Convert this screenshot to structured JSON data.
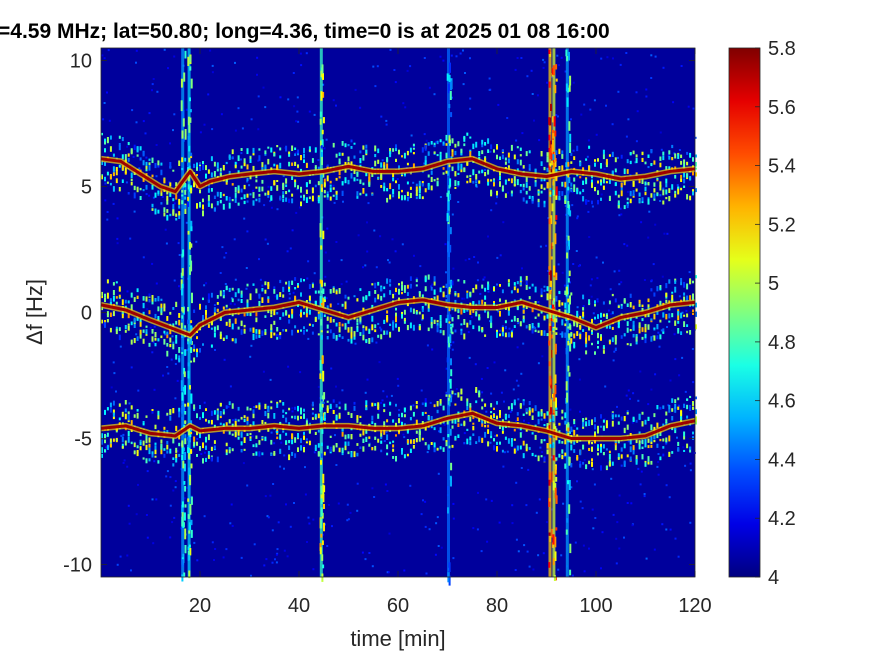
{
  "chart_data": {
    "type": "heatmap",
    "title": "=4.59 MHz;  lat=50.80; long=4.36, time=0 is at 2025 01 08 16:00",
    "xlabel": "time [min]",
    "ylabel": "Δf [Hz]",
    "xlim": [
      0,
      120
    ],
    "ylim": [
      -10.5,
      10.5
    ],
    "x_ticks": [
      20,
      40,
      60,
      80,
      100,
      120
    ],
    "x_tick_labels": [
      "20",
      "40",
      "60",
      "80",
      "100",
      "120"
    ],
    "y_ticks": [
      10,
      5,
      0,
      -5,
      -10
    ],
    "y_tick_labels": [
      "10",
      "5",
      "0",
      "-5",
      "-10"
    ],
    "colorbar": {
      "min": 4,
      "max": 5.8,
      "ticks": [
        5.8,
        5.6,
        5.4,
        5.2,
        5,
        4.8,
        4.6,
        4.4,
        4.2,
        4
      ],
      "tick_labels": [
        "5.8",
        "5.6",
        "5.4",
        "5.2",
        "5",
        "4.8",
        "4.6",
        "4.4",
        "4.2",
        "4"
      ],
      "colormap": "jet",
      "placement": "right"
    },
    "background_level": 4.05,
    "vertical_interference_lines": [
      {
        "time": 16.5,
        "level": 5.0
      },
      {
        "time": 17.8,
        "level": 5.1
      },
      {
        "time": 44.5,
        "level": 5.3
      },
      {
        "time": 70.2,
        "level": 4.9
      },
      {
        "time": 90.7,
        "level": 5.8
      },
      {
        "time": 91.5,
        "level": 5.6
      },
      {
        "time": 94.2,
        "level": 5.0
      }
    ],
    "series": [
      {
        "center_hz": 5.5,
        "points": [
          [
            0,
            6.1
          ],
          [
            4,
            6.0
          ],
          [
            8,
            5.5
          ],
          [
            12,
            5.0
          ],
          [
            15,
            4.8
          ],
          [
            18,
            5.6
          ],
          [
            20,
            5.0
          ],
          [
            22,
            5.2
          ],
          [
            26,
            5.4
          ],
          [
            30,
            5.5
          ],
          [
            35,
            5.6
          ],
          [
            40,
            5.5
          ],
          [
            45,
            5.6
          ],
          [
            50,
            5.8
          ],
          [
            55,
            5.6
          ],
          [
            60,
            5.6
          ],
          [
            65,
            5.7
          ],
          [
            70,
            6.0
          ],
          [
            75,
            6.1
          ],
          [
            80,
            5.7
          ],
          [
            85,
            5.5
          ],
          [
            90,
            5.4
          ],
          [
            95,
            5.6
          ],
          [
            100,
            5.5
          ],
          [
            105,
            5.3
          ],
          [
            110,
            5.4
          ],
          [
            115,
            5.6
          ],
          [
            120,
            5.7
          ]
        ]
      },
      {
        "center_hz": 0,
        "points": [
          [
            0,
            0.3
          ],
          [
            5,
            0.1
          ],
          [
            10,
            -0.3
          ],
          [
            14,
            -0.6
          ],
          [
            18,
            -0.9
          ],
          [
            20,
            -0.5
          ],
          [
            25,
            0.0
          ],
          [
            30,
            0.1
          ],
          [
            35,
            0.2
          ],
          [
            40,
            0.4
          ],
          [
            45,
            0.1
          ],
          [
            50,
            -0.2
          ],
          [
            55,
            0.1
          ],
          [
            60,
            0.4
          ],
          [
            65,
            0.5
          ],
          [
            70,
            0.3
          ],
          [
            75,
            0.2
          ],
          [
            80,
            0.2
          ],
          [
            85,
            0.4
          ],
          [
            90,
            0.1
          ],
          [
            95,
            -0.2
          ],
          [
            100,
            -0.6
          ],
          [
            105,
            -0.2
          ],
          [
            110,
            0.0
          ],
          [
            115,
            0.3
          ],
          [
            120,
            0.4
          ]
        ]
      },
      {
        "center_hz": -4.6,
        "points": [
          [
            0,
            -4.6
          ],
          [
            5,
            -4.5
          ],
          [
            10,
            -4.8
          ],
          [
            15,
            -4.9
          ],
          [
            18,
            -4.5
          ],
          [
            20,
            -4.7
          ],
          [
            25,
            -4.6
          ],
          [
            30,
            -4.6
          ],
          [
            35,
            -4.5
          ],
          [
            40,
            -4.6
          ],
          [
            45,
            -4.5
          ],
          [
            50,
            -4.5
          ],
          [
            55,
            -4.6
          ],
          [
            60,
            -4.6
          ],
          [
            65,
            -4.5
          ],
          [
            70,
            -4.2
          ],
          [
            75,
            -4.0
          ],
          [
            80,
            -4.4
          ],
          [
            85,
            -4.5
          ],
          [
            90,
            -4.7
          ],
          [
            95,
            -5.0
          ],
          [
            100,
            -5.0
          ],
          [
            105,
            -5.0
          ],
          [
            110,
            -4.9
          ],
          [
            115,
            -4.5
          ],
          [
            120,
            -4.3
          ]
        ]
      }
    ]
  }
}
